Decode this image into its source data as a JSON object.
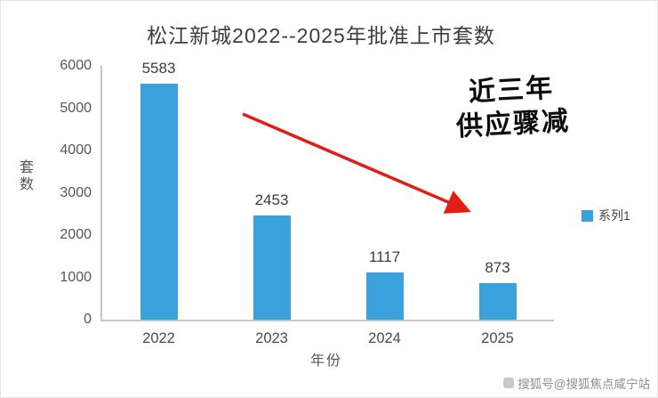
{
  "title": "松江新城2022--2025年批准上市套数",
  "chart_data": {
    "type": "bar",
    "categories": [
      "2022",
      "2023",
      "2024",
      "2025"
    ],
    "values": [
      5583,
      2453,
      1117,
      873
    ],
    "data_labels": [
      "5583",
      "2453",
      "1117",
      "873"
    ],
    "title": "松江新城2022--2025年批准上市套数",
    "xlabel": "年份",
    "ylabel": "套数",
    "ylim": [
      0,
      6000
    ],
    "yticks": [
      0,
      1000,
      2000,
      3000,
      4000,
      5000,
      6000
    ],
    "grid": "off",
    "bar_color": "#3ba1dc",
    "legend": [
      "系列1"
    ],
    "legend_position": "right"
  },
  "annotation": {
    "line1": "近三年",
    "line2": "供应骤减",
    "arrow_color": "#e11d14"
  },
  "watermark": "搜狐号@搜狐焦点咸宁站"
}
